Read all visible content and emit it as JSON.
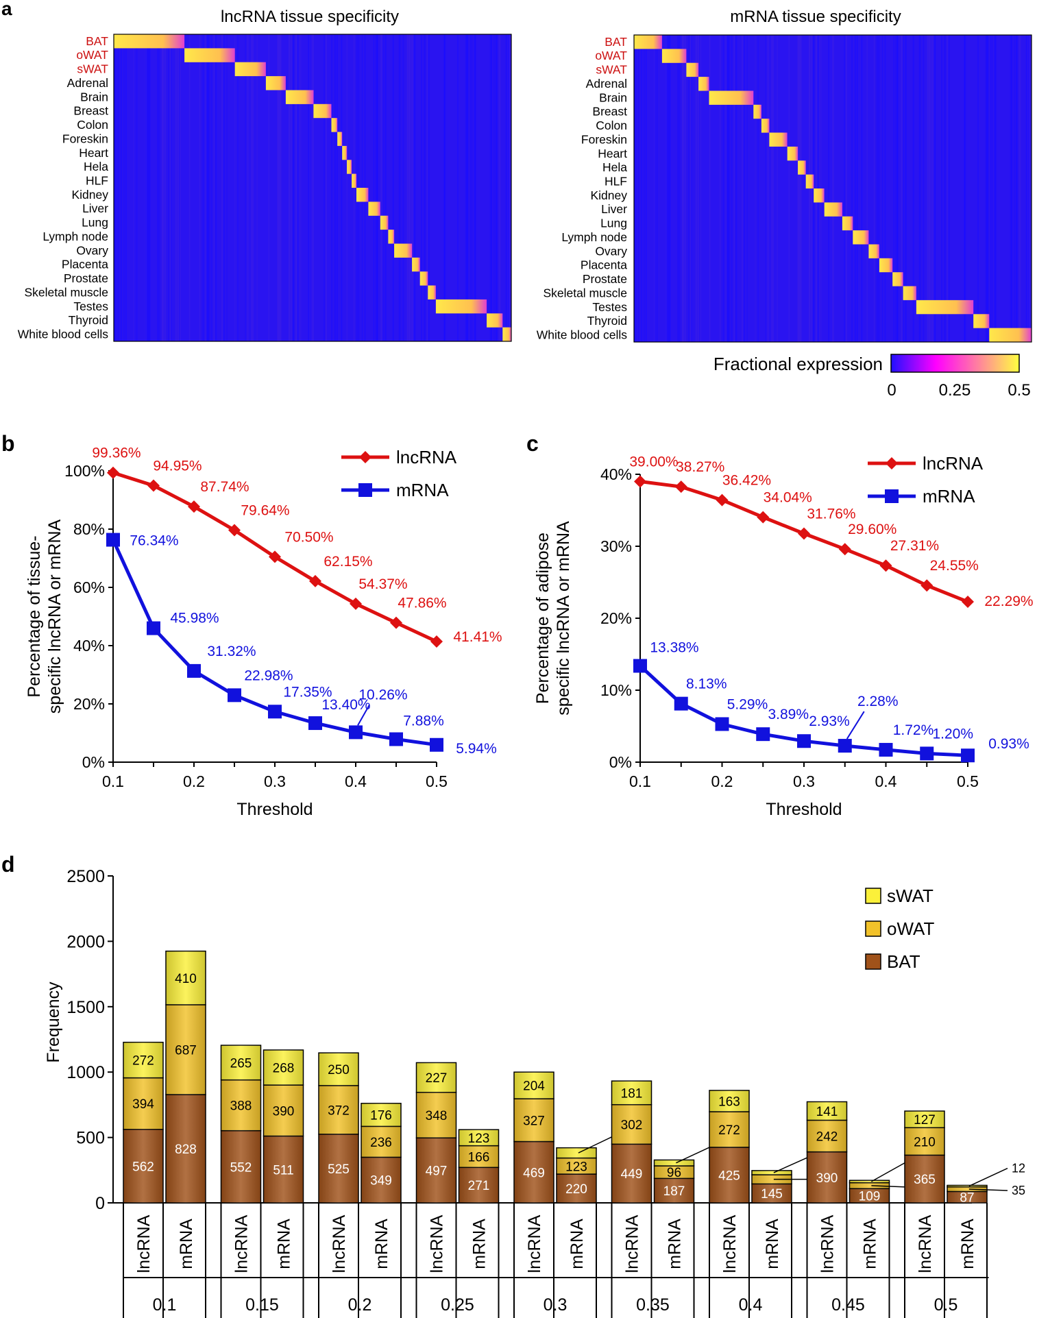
{
  "panels": {
    "a": {
      "letter": "a",
      "lnc_title": "lncRNA tissue specificity",
      "mrna_title": "mRNA tissue specificity",
      "adipose_color": "#cc1010",
      "colorbar_label": "Fractional expression",
      "colorbar_ticks": [
        "0",
        "0.25",
        "0.5"
      ],
      "colors": [
        "#2010ff",
        "#ff00ff",
        "#ffff40"
      ]
    },
    "b": {
      "letter": "b"
    },
    "c": {
      "letter": "c"
    },
    "d": {
      "letter": "d"
    }
  },
  "chart_data": [
    {
      "id": "a",
      "type": "heatmap",
      "title_left": "lncRNA tissue specificity",
      "title_right": "mRNA tissue specificity",
      "rows": [
        "BAT",
        "oWAT",
        "sWAT",
        "Adrenal",
        "Brain",
        "Breast",
        "Colon",
        "Foreskin",
        "Heart",
        "Hela",
        "HLF",
        "Kidney",
        "Liver",
        "Lung",
        "Lymph node",
        "Ovary",
        "Placenta",
        "Prostate",
        "Skeletal muscle",
        "Testes",
        "Thyroid",
        "White blood cells"
      ],
      "highlight_rows": [
        "BAT",
        "oWAT",
        "sWAT"
      ],
      "lnc_block_fractions": [
        0.178,
        0.127,
        0.078,
        0.05,
        0.07,
        0.045,
        0.015,
        0.012,
        0.012,
        0.012,
        0.012,
        0.03,
        0.03,
        0.02,
        0.015,
        0.045,
        0.02,
        0.02,
        0.02,
        0.128,
        0.04,
        0.022
      ],
      "mrna_block_fractions": [
        0.053,
        0.046,
        0.023,
        0.02,
        0.084,
        0.015,
        0.015,
        0.034,
        0.02,
        0.015,
        0.015,
        0.02,
        0.034,
        0.02,
        0.03,
        0.02,
        0.025,
        0.02,
        0.025,
        0.108,
        0.03,
        0.08
      ],
      "colorbar": {
        "label": "Fractional expression",
        "min": 0,
        "max": 0.5,
        "ticks": [
          0,
          0.25,
          0.5
        ]
      }
    },
    {
      "id": "b",
      "type": "line",
      "xlabel": "Threshold",
      "ylabel": [
        "Percentage of tissue-",
        "specific lncRNA or mRNA"
      ],
      "x": [
        0.1,
        0.15,
        0.2,
        0.25,
        0.3,
        0.35,
        0.4,
        0.45,
        0.5
      ],
      "xticks": [
        "0.1",
        "0.2",
        "0.3",
        "0.4",
        "0.5"
      ],
      "ylim": [
        0,
        100
      ],
      "yticks": [
        "0%",
        "20%",
        "40%",
        "60%",
        "80%",
        "100%"
      ],
      "series": [
        {
          "name": "lncRNA",
          "color": "#dd1111",
          "marker": "diamond",
          "values": [
            99.36,
            94.95,
            87.74,
            79.64,
            70.5,
            62.15,
            54.37,
            47.86,
            41.41
          ],
          "labels": [
            "99.36%",
            "94.95%",
            "87.74%",
            "79.64%",
            "70.50%",
            "62.15%",
            "54.37%",
            "47.86%",
            "41.41%"
          ]
        },
        {
          "name": "mRNA",
          "color": "#1111dd",
          "marker": "square",
          "values": [
            76.34,
            45.98,
            31.32,
            22.98,
            17.35,
            13.4,
            10.26,
            7.88,
            5.94
          ],
          "labels": [
            "76.34%",
            "45.98%",
            "31.32%",
            "22.98%",
            "17.35%",
            "13.40%",
            "10.26%",
            "7.88%",
            "5.94%"
          ]
        }
      ]
    },
    {
      "id": "c",
      "type": "line",
      "xlabel": "Threshold",
      "ylabel": [
        "Percentage of adipose",
        "specific lncRNA or mRNA"
      ],
      "x": [
        0.1,
        0.15,
        0.2,
        0.25,
        0.3,
        0.35,
        0.4,
        0.45,
        0.5
      ],
      "xticks": [
        "0.1",
        "0.2",
        "0.3",
        "0.4",
        "0.5"
      ],
      "ylim": [
        0,
        40
      ],
      "yticks": [
        "0%",
        "10%",
        "20%",
        "30%",
        "40%"
      ],
      "series": [
        {
          "name": "lncRNA",
          "color": "#dd1111",
          "marker": "diamond",
          "values": [
            39.0,
            38.27,
            36.42,
            34.04,
            31.76,
            29.6,
            27.31,
            24.55,
            22.29
          ],
          "labels": [
            "39.00%",
            "38.27%",
            "36.42%",
            "34.04%",
            "31.76%",
            "29.60%",
            "27.31%",
            "24.55%",
            "22.29%"
          ]
        },
        {
          "name": "mRNA",
          "color": "#1111dd",
          "marker": "square",
          "values": [
            13.38,
            8.13,
            5.29,
            3.89,
            2.93,
            2.28,
            1.72,
            1.2,
            0.93
          ],
          "labels": [
            "13.38%",
            "8.13%",
            "5.29%",
            "3.89%",
            "2.93%",
            "2.28%",
            "1.72%",
            "1.20%",
            "0.93%"
          ]
        }
      ]
    },
    {
      "id": "d",
      "type": "bar",
      "stacked": true,
      "ylabel": "Frequency",
      "ylim": [
        0,
        2500
      ],
      "yticks": [
        "0",
        "500",
        "1000",
        "1500",
        "2000",
        "2500"
      ],
      "groups": [
        "0.1",
        "0.15",
        "0.2",
        "0.25",
        "0.3",
        "0.35",
        "0.4",
        "0.45",
        "0.5"
      ],
      "bar_labels": [
        "lncRNA",
        "mRNA"
      ],
      "legend": [
        "sWAT",
        "oWAT",
        "BAT"
      ],
      "stack_colors": {
        "BAT": "#a0521a",
        "oWAT": "#f2c22a",
        "sWAT": "#fbf03a"
      },
      "series": [
        {
          "name": "BAT",
          "lncRNA": [
            562,
            552,
            525,
            497,
            469,
            449,
            425,
            390,
            365
          ],
          "mRNA": [
            828,
            511,
            349,
            271,
            220,
            187,
            145,
            109,
            87
          ]
        },
        {
          "name": "oWAT",
          "lncRNA": [
            394,
            388,
            372,
            348,
            327,
            302,
            272,
            242,
            210
          ],
          "mRNA": [
            687,
            390,
            236,
            166,
            123,
            96,
            70,
            45,
            35
          ]
        },
        {
          "name": "sWAT",
          "lncRNA": [
            272,
            265,
            250,
            227,
            204,
            181,
            163,
            141,
            127
          ],
          "mRNA": [
            410,
            268,
            176,
            123,
            78,
            45,
            32,
            18,
            12
          ]
        }
      ]
    }
  ]
}
